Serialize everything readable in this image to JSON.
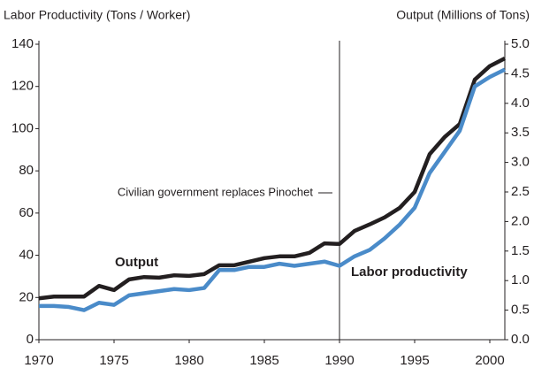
{
  "chart_data": {
    "type": "line",
    "y_label": "Labor Productivity (Tons / Worker)",
    "y2_label": "Output (Millions of Tons)",
    "x": [
      1970,
      1971,
      1972,
      1973,
      1974,
      1975,
      1976,
      1977,
      1978,
      1979,
      1980,
      1981,
      1982,
      1983,
      1984,
      1985,
      1986,
      1987,
      1988,
      1989,
      1990,
      1991,
      1992,
      1993,
      1994,
      1995,
      1996,
      1997,
      1998,
      1999,
      2000,
      2001
    ],
    "series": [
      {
        "name": "Output",
        "color": "#231f20",
        "axis": "y2",
        "values": [
          0.7,
          0.73,
          0.73,
          0.73,
          0.91,
          0.84,
          1.02,
          1.06,
          1.05,
          1.09,
          1.08,
          1.11,
          1.26,
          1.26,
          1.32,
          1.38,
          1.41,
          1.41,
          1.47,
          1.63,
          1.62,
          1.84,
          1.95,
          2.07,
          2.23,
          2.5,
          3.14,
          3.43,
          3.65,
          4.4,
          4.63,
          4.76
        ]
      },
      {
        "name": "Labor productivity",
        "color": "#4a8bc9",
        "values": [
          16,
          16,
          15.5,
          14,
          17.5,
          16.5,
          21,
          22,
          23,
          24,
          23.5,
          24.5,
          33,
          33,
          34.5,
          34.5,
          36,
          35,
          36,
          37,
          35,
          39.5,
          42.5,
          48,
          54.5,
          62.5,
          79,
          89,
          99,
          120,
          124.5,
          128
        ]
      }
    ],
    "annotation": {
      "text": "Civilian government replaces Pinochet",
      "x": 1990
    },
    "xlim": [
      1970,
      2001
    ],
    "xticks": [
      1970,
      1975,
      1980,
      1985,
      1990,
      1995,
      2000
    ],
    "ylim": [
      0,
      140
    ],
    "yticks": [
      0,
      20,
      40,
      60,
      80,
      100,
      120,
      140
    ],
    "y2lim": [
      0,
      5
    ],
    "y2ticks": [
      {
        "value": 0,
        "label": "0.0"
      },
      0.5,
      {
        "value": 1,
        "label": "1.0"
      },
      1.5,
      {
        "value": 2,
        "label": "2.0"
      },
      2.5,
      {
        "value": 3,
        "label": "3.0"
      },
      3.5,
      {
        "value": 4,
        "label": "4.0"
      },
      4.5,
      {
        "value": 5,
        "label": "5.0"
      }
    ]
  }
}
